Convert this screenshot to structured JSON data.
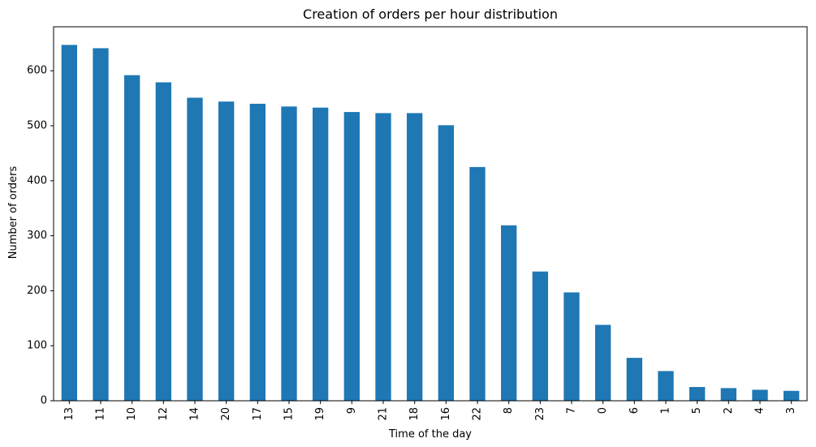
{
  "chart_data": {
    "type": "bar",
    "title": "Creation of orders per hour distribution",
    "xlabel": "Time of the day",
    "ylabel": "Number of orders",
    "categories": [
      "13",
      "11",
      "10",
      "12",
      "14",
      "20",
      "17",
      "15",
      "19",
      "9",
      "21",
      "18",
      "16",
      "22",
      "8",
      "23",
      "7",
      "0",
      "6",
      "1",
      "5",
      "2",
      "4",
      "3"
    ],
    "values": [
      647,
      641,
      592,
      579,
      551,
      544,
      540,
      535,
      533,
      525,
      523,
      523,
      501,
      425,
      319,
      235,
      197,
      138,
      78,
      54,
      25,
      23,
      20,
      18
    ],
    "ylim": [
      0,
      680
    ],
    "yticks": [
      0,
      100,
      200,
      300,
      400,
      500,
      600
    ],
    "bar_color": "#1f77b4",
    "grid": false,
    "legend": "none"
  }
}
